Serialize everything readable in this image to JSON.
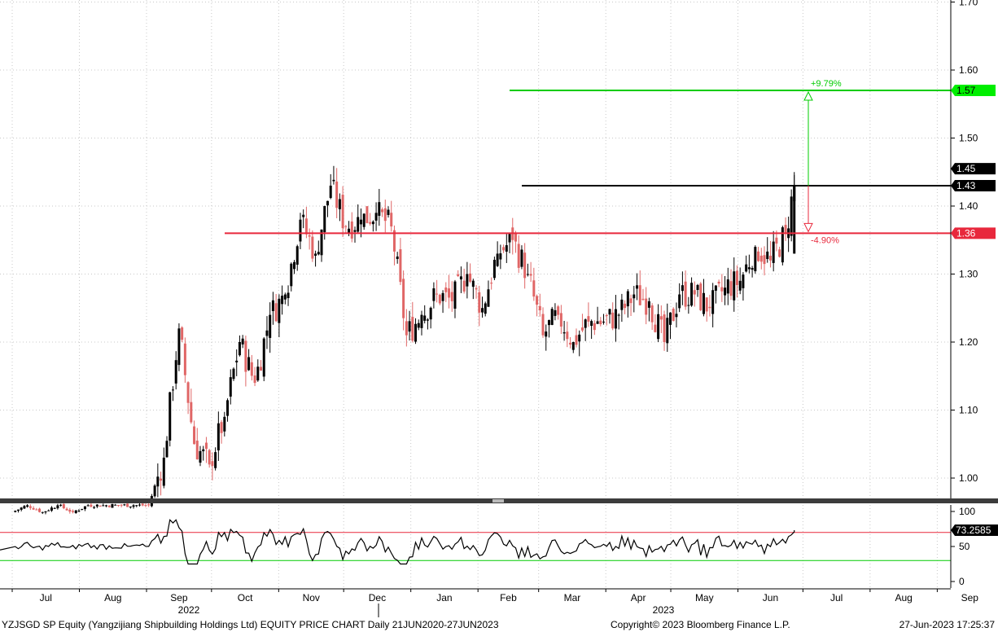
{
  "chart_data": {
    "type": "candlestick",
    "x_months": [
      "Jul",
      "Aug",
      "Sep",
      "Oct",
      "Nov",
      "Dec",
      "Jan",
      "Feb",
      "Mar",
      "Apr",
      "May",
      "Jun",
      "Jul",
      "Aug",
      "Sep"
    ],
    "x_years": [
      "2022",
      "2023"
    ],
    "price_axis": {
      "ylim": [
        0.94,
        1.72
      ],
      "ticks": [
        "1.00",
        "1.10",
        "1.20",
        "1.30",
        "1.40",
        "1.50",
        "1.60",
        "1.70"
      ],
      "grid": true
    },
    "rsi_axis": {
      "ylim": [
        -10,
        110
      ],
      "ticks": [
        "0",
        "50",
        "100"
      ],
      "upper_line": 70,
      "lower_line": 30
    },
    "levels": {
      "resistance": {
        "value": 1.57,
        "label": "1.57",
        "change": "+9.79%",
        "color": "#00cc00"
      },
      "current": {
        "value": 1.43,
        "label": "1.43",
        "color": "#000000"
      },
      "support": {
        "value": 1.36,
        "label": "1.36",
        "change": "-4.90%",
        "color": "#e8283c"
      },
      "high_label": "1.45",
      "rsi_label": "73.2585"
    },
    "colors": {
      "up": "#000000",
      "down": "#e06666",
      "grid": "#c8c8c8"
    },
    "weekly_closes": [
      [
        "2022-07-01",
        0.95
      ],
      [
        "2022-07-08",
        0.96
      ],
      [
        "2022-07-15",
        0.95
      ],
      [
        "2022-07-22",
        0.96
      ],
      [
        "2022-07-29",
        0.95
      ],
      [
        "2022-08-05",
        0.96
      ],
      [
        "2022-08-12",
        0.96
      ],
      [
        "2022-08-19",
        0.96
      ],
      [
        "2022-08-26",
        0.96
      ],
      [
        "2022-09-02",
        0.96
      ],
      [
        "2022-09-09",
        1.03
      ],
      [
        "2022-09-16",
        1.22
      ],
      [
        "2022-09-23",
        1.05
      ],
      [
        "2022-09-30",
        1.02
      ],
      [
        "2022-10-07",
        1.09
      ],
      [
        "2022-10-14",
        1.2
      ],
      [
        "2022-10-21",
        1.14
      ],
      [
        "2022-10-28",
        1.24
      ],
      [
        "2022-11-04",
        1.27
      ],
      [
        "2022-11-11",
        1.38
      ],
      [
        "2022-11-18",
        1.33
      ],
      [
        "2022-11-25",
        1.43
      ],
      [
        "2022-12-02",
        1.37
      ],
      [
        "2022-12-09",
        1.38
      ],
      [
        "2022-12-16",
        1.39
      ],
      [
        "2022-12-23",
        1.37
      ],
      [
        "2022-12-30",
        1.21
      ],
      [
        "2023-01-06",
        1.24
      ],
      [
        "2023-01-13",
        1.27
      ],
      [
        "2023-01-20",
        1.26
      ],
      [
        "2023-01-27",
        1.3
      ],
      [
        "2023-02-03",
        1.25
      ],
      [
        "2023-02-10",
        1.33
      ],
      [
        "2023-02-17",
        1.35
      ],
      [
        "2023-02-24",
        1.3
      ],
      [
        "2023-03-03",
        1.21
      ],
      [
        "2023-03-10",
        1.24
      ],
      [
        "2023-03-17",
        1.2
      ],
      [
        "2023-03-24",
        1.23
      ],
      [
        "2023-03-31",
        1.23
      ],
      [
        "2023-04-07",
        1.24
      ],
      [
        "2023-04-14",
        1.27
      ],
      [
        "2023-04-21",
        1.26
      ],
      [
        "2023-04-28",
        1.2
      ],
      [
        "2023-05-05",
        1.27
      ],
      [
        "2023-05-12",
        1.27
      ],
      [
        "2023-05-19",
        1.25
      ],
      [
        "2023-05-26",
        1.28
      ],
      [
        "2023-06-02",
        1.29
      ],
      [
        "2023-06-09",
        1.34
      ],
      [
        "2023-06-16",
        1.32
      ],
      [
        "2023-06-23",
        1.36
      ],
      [
        "2023-06-27",
        1.43
      ]
    ]
  },
  "footer": {
    "left": "YZJSGD SP Equity (Yangzijiang Shipbuilding Holdings Ltd) EQUITY PRICE CHART  Daily 21JUN2020-27JUN2023",
    "center": "Copyright© 2023 Bloomberg Finance L.P.",
    "right": "27-Jun-2023 17:25:37"
  }
}
